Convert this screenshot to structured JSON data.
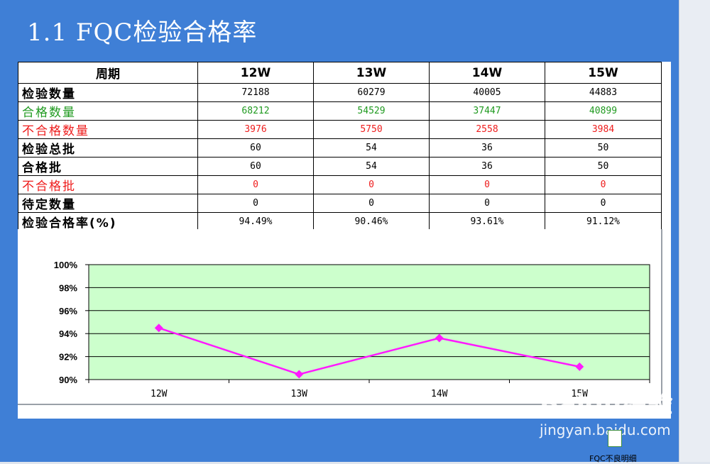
{
  "title": "1.1 FQC检验合格率",
  "table": {
    "header": [
      "周期",
      "12W",
      "13W",
      "14W",
      "15W"
    ],
    "rows": [
      {
        "label": "检验数量",
        "values": [
          "72188",
          "60279",
          "40005",
          "44883"
        ],
        "tone": "black"
      },
      {
        "label": "合格数量",
        "values": [
          "68212",
          "54529",
          "37447",
          "40899"
        ],
        "tone": "green"
      },
      {
        "label": "不合格数量",
        "values": [
          "3976",
          "5750",
          "2558",
          "3984"
        ],
        "tone": "red"
      },
      {
        "label": "检验总批",
        "values": [
          "60",
          "54",
          "36",
          "50"
        ],
        "tone": "black"
      },
      {
        "label": "合格批",
        "values": [
          "60",
          "54",
          "36",
          "50"
        ],
        "tone": "black"
      },
      {
        "label": "不合格批",
        "values": [
          "0",
          "0",
          "0",
          "0"
        ],
        "tone": "red"
      },
      {
        "label": "待定数量",
        "values": [
          "0",
          "0",
          "0",
          "0"
        ],
        "tone": "black"
      },
      {
        "label": "检验合格率(%)",
        "values": [
          "94.49%",
          "90.46%",
          "93.61%",
          "91.12%"
        ],
        "tone": "black"
      }
    ]
  },
  "chart_data": {
    "type": "line",
    "categories": [
      "12W",
      "13W",
      "14W",
      "15W"
    ],
    "series": [
      {
        "values": [
          94.49,
          90.46,
          93.61,
          91.12
        ]
      }
    ],
    "ylim": [
      90,
      100
    ],
    "yticks": [
      "90%",
      "92%",
      "94%",
      "96%",
      "98%",
      "100%"
    ],
    "grid": true,
    "colors": {
      "line": "#ff1aff",
      "plot_bg": "#ccffcc"
    }
  },
  "watermark": {
    "logo": "Baidu经验",
    "url": "jingyan.baidu.com"
  },
  "file": {
    "label": "FQC不良明细"
  }
}
